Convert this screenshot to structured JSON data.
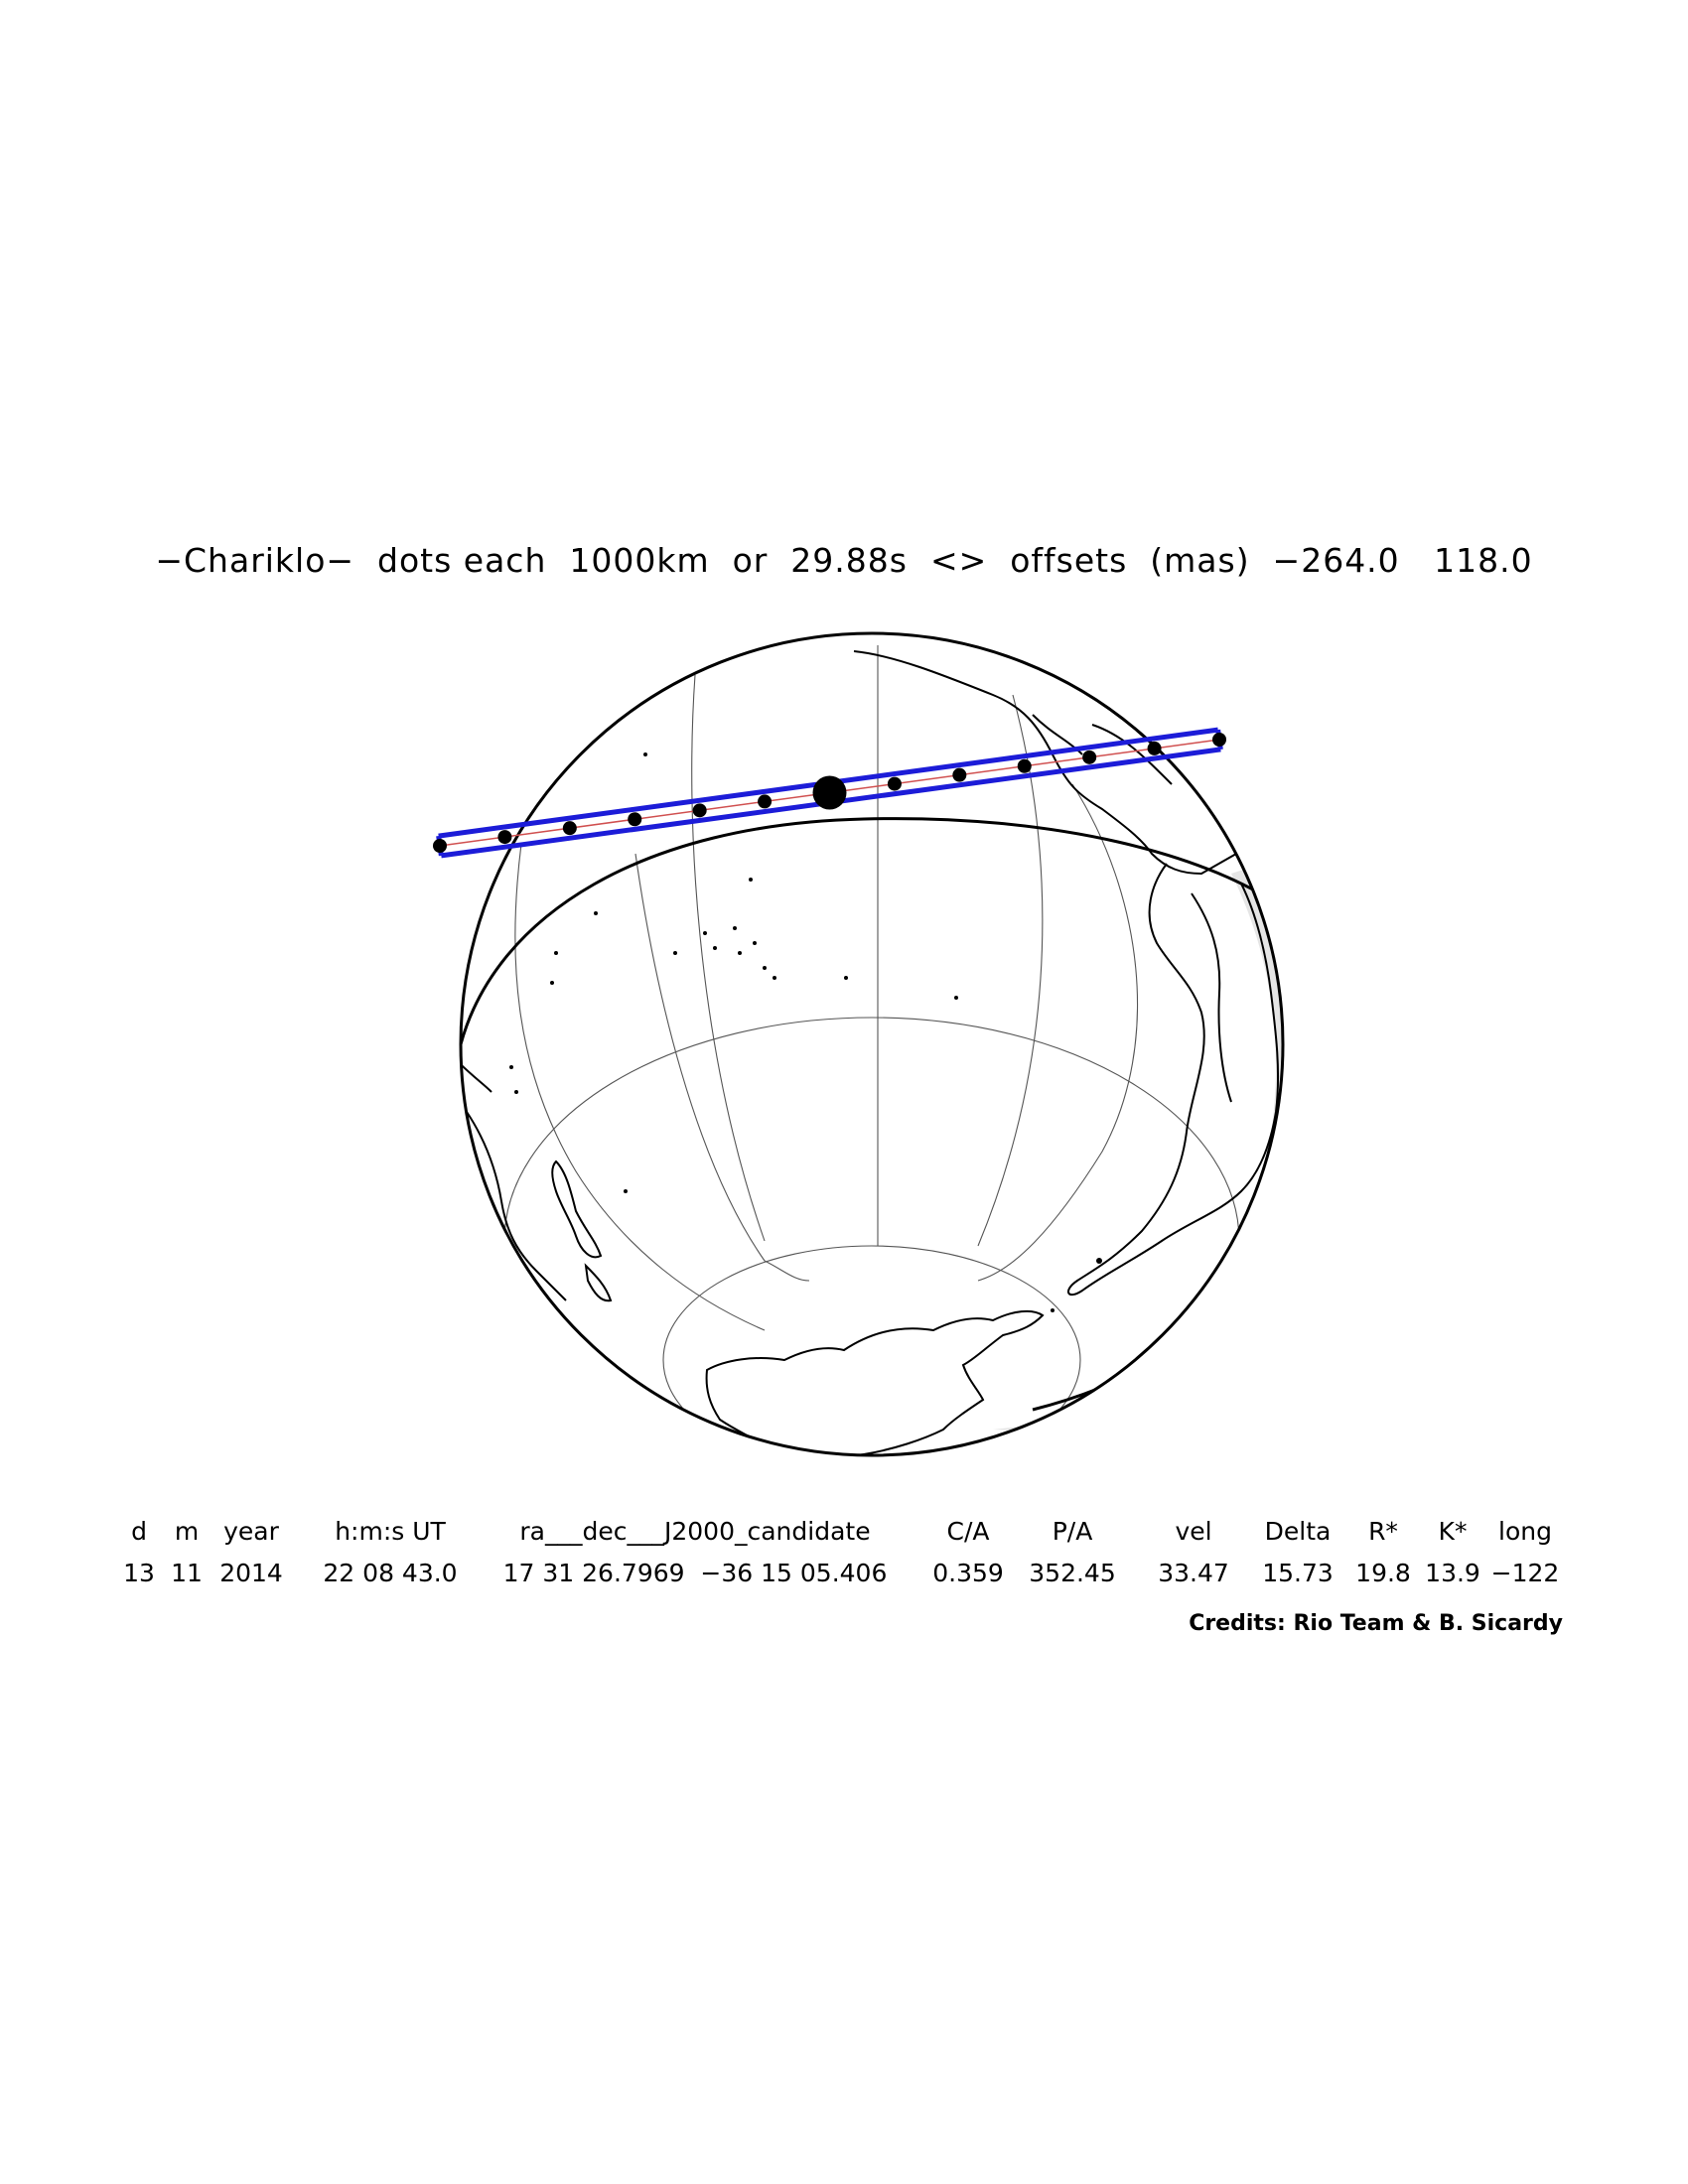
{
  "title": "−Chariklo−  dots each  1000km  or  29.88s  <>  offsets  (mas)  −264.0   118.0",
  "table": {
    "headers": [
      "d",
      "m",
      "year",
      "h:m:s UT",
      "ra___dec___J2000_candidate",
      "C/A",
      "P/A",
      "vel",
      "Delta",
      "R*",
      "K*",
      "long"
    ],
    "values": [
      "13",
      "11",
      "2014",
      "22 08 43.0",
      "17 31 26.7969  −36 15 05.406",
      "0.359",
      "352.45",
      "33.47",
      "15.73",
      "19.8",
      "13.9",
      "−122"
    ]
  },
  "credits": "Credits: Rio Team & B. Sicardy",
  "colors": {
    "path": "#1c1cd8",
    "center_line": "#d05050",
    "night_shade": "#d4d4d4",
    "land_outline": "#000000"
  },
  "occultation_path": {
    "dot_spacing_km": 1000,
    "dot_spacing_s": 29.88,
    "offsets_mas": [
      -264.0,
      118.0
    ],
    "dot_count": 13,
    "central_dot_index": 6
  }
}
